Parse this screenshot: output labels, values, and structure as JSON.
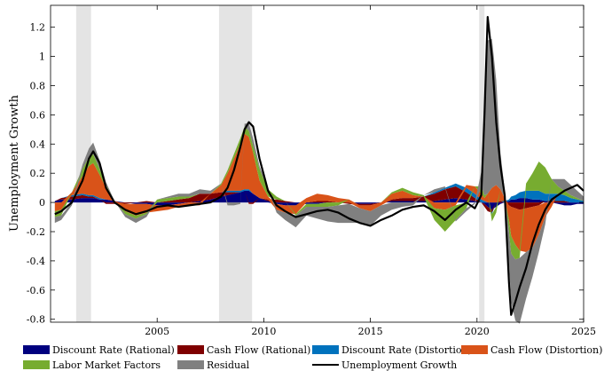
{
  "chart_data": {
    "type": "area",
    "ylabel": "Unemployment Growth",
    "xlabel": "",
    "xlim": [
      2000,
      2025
    ],
    "ylim": [
      -0.82,
      1.35
    ],
    "xticks": [
      2005,
      2010,
      2015,
      2020,
      2025
    ],
    "yticks": [
      -0.8,
      -0.6,
      -0.4,
      -0.2,
      0,
      0.2,
      0.4,
      0.6,
      0.8,
      1,
      1.2
    ],
    "recessions": [
      [
        2001.2,
        2001.9
      ],
      [
        2007.9,
        2009.45
      ],
      [
        2020.1,
        2020.35
      ]
    ],
    "x": [
      2000.2,
      2000.5,
      2001.0,
      2001.5,
      2001.8,
      2002.0,
      2002.3,
      2002.6,
      2003.0,
      2003.5,
      2004.0,
      2004.5,
      2005.0,
      2005.5,
      2006.0,
      2006.5,
      2007.0,
      2007.5,
      2008.0,
      2008.3,
      2008.6,
      2008.9,
      2009.1,
      2009.3,
      2009.5,
      2009.8,
      2010.2,
      2010.6,
      2011.0,
      2011.5,
      2012.0,
      2012.5,
      2013.0,
      2013.5,
      2014.0,
      2014.5,
      2015.0,
      2015.5,
      2016.0,
      2016.5,
      2017.0,
      2017.5,
      2018.0,
      2018.5,
      2019.0,
      2019.5,
      2019.9,
      2020.2,
      2020.35,
      2020.5,
      2020.7,
      2020.9,
      2021.1,
      2021.3,
      2021.5,
      2021.6,
      2021.8,
      2022.0,
      2022.3,
      2022.6,
      2022.9,
      2023.2,
      2023.5,
      2023.8,
      2024.1,
      2024.4,
      2024.7,
      2025.0
    ],
    "series": [
      {
        "name": "Discount Rate (Rational)",
        "color": "#00007f",
        "values": [
          0.01,
          0.02,
          0.02,
          0.03,
          0.03,
          0.03,
          0.02,
          0.02,
          0.01,
          0.0,
          -0.01,
          -0.01,
          -0.02,
          -0.02,
          -0.01,
          0.0,
          0.01,
          0.02,
          0.04,
          0.05,
          0.06,
          0.07,
          0.08,
          0.08,
          0.06,
          0.03,
          0.01,
          -0.01,
          -0.02,
          -0.02,
          -0.01,
          -0.01,
          0.0,
          0.0,
          0.0,
          -0.01,
          -0.01,
          0.0,
          0.01,
          0.01,
          0.01,
          0.01,
          0.01,
          0.02,
          0.03,
          0.02,
          0.01,
          0.0,
          -0.01,
          -0.03,
          -0.05,
          -0.03,
          -0.01,
          0.0,
          0.01,
          0.02,
          0.02,
          0.03,
          0.03,
          0.02,
          0.02,
          0.01,
          0.0,
          -0.01,
          -0.02,
          -0.02,
          -0.01,
          -0.01
        ]
      },
      {
        "name": "Cash Flow (Rational)",
        "color": "#7f0000",
        "values": [
          0.0,
          0.01,
          0.02,
          0.02,
          0.01,
          0.01,
          0.0,
          -0.01,
          -0.01,
          -0.01,
          0.0,
          0.01,
          0.0,
          0.01,
          0.02,
          0.03,
          0.05,
          0.04,
          0.03,
          0.02,
          0.01,
          0.0,
          0.0,
          -0.01,
          -0.01,
          0.0,
          0.01,
          0.02,
          0.01,
          0.0,
          0.0,
          0.01,
          0.01,
          0.0,
          -0.01,
          -0.01,
          -0.01,
          0.0,
          0.01,
          0.02,
          0.02,
          0.03,
          0.05,
          0.07,
          0.08,
          0.05,
          0.02,
          0.0,
          -0.02,
          -0.03,
          -0.02,
          0.0,
          0.01,
          0.0,
          -0.02,
          -0.03,
          -0.04,
          -0.05,
          -0.04,
          -0.03,
          -0.02,
          0.0,
          0.01,
          0.01,
          0.01,
          0.0,
          0.0,
          0.0
        ]
      },
      {
        "name": "Discount Rate (Distortion)",
        "color": "#0072bd",
        "values": [
          0.0,
          0.0,
          0.01,
          0.01,
          0.01,
          0.01,
          0.01,
          0.0,
          0.0,
          0.0,
          0.0,
          0.0,
          0.0,
          0.0,
          0.0,
          0.0,
          0.0,
          0.0,
          0.0,
          0.01,
          0.01,
          0.01,
          0.01,
          0.01,
          0.0,
          0.0,
          0.0,
          0.0,
          0.0,
          0.0,
          0.0,
          0.0,
          0.0,
          0.0,
          0.0,
          0.0,
          0.0,
          0.0,
          0.0,
          0.0,
          0.0,
          0.0,
          0.01,
          0.01,
          0.02,
          0.03,
          0.03,
          0.02,
          0.01,
          0.0,
          -0.01,
          0.0,
          0.0,
          0.01,
          0.01,
          0.02,
          0.03,
          0.04,
          0.05,
          0.06,
          0.06,
          0.05,
          0.05,
          0.05,
          0.04,
          0.03,
          0.02,
          0.01
        ]
      },
      {
        "name": "Cash Flow (Distortion)",
        "color": "#d95319",
        "values": [
          -0.06,
          -0.05,
          0.02,
          0.12,
          0.2,
          0.22,
          0.16,
          0.08,
          0.0,
          -0.05,
          -0.08,
          -0.06,
          -0.04,
          -0.03,
          -0.02,
          -0.02,
          -0.02,
          0.0,
          0.05,
          0.12,
          0.22,
          0.32,
          0.38,
          0.36,
          0.28,
          0.12,
          0.02,
          -0.04,
          -0.05,
          -0.06,
          0.03,
          0.05,
          0.04,
          0.03,
          0.02,
          -0.02,
          -0.04,
          -0.02,
          0.04,
          0.05,
          0.02,
          0.0,
          -0.04,
          -0.05,
          -0.02,
          0.02,
          0.05,
          0.04,
          0.02,
          0.06,
          0.1,
          0.12,
          0.08,
          0.02,
          -0.1,
          -0.2,
          -0.25,
          -0.28,
          -0.3,
          -0.28,
          -0.2,
          -0.1,
          -0.03,
          0.0,
          0.0,
          0.0,
          0.0,
          0.0
        ]
      },
      {
        "name": "Labor Market Factors",
        "color": "#77ac30",
        "values": [
          -0.04,
          -0.04,
          0.0,
          0.05,
          0.06,
          0.06,
          0.04,
          0.02,
          0.0,
          -0.02,
          -0.02,
          -0.01,
          0.02,
          0.02,
          0.02,
          0.01,
          0.0,
          0.0,
          0.01,
          0.02,
          0.03,
          0.04,
          0.05,
          0.04,
          0.05,
          0.08,
          0.05,
          0.02,
          0.0,
          -0.01,
          -0.02,
          -0.02,
          -0.03,
          -0.02,
          0.0,
          0.0,
          0.0,
          0.0,
          0.01,
          0.02,
          0.02,
          0.01,
          -0.08,
          -0.15,
          -0.1,
          -0.04,
          0.0,
          0.05,
          0.02,
          0.0,
          -0.05,
          -0.04,
          0.0,
          0.0,
          -0.08,
          -0.12,
          -0.1,
          -0.05,
          0.05,
          0.12,
          0.2,
          0.18,
          0.1,
          0.05,
          0.03,
          0.02,
          0.01,
          0.0
        ]
      },
      {
        "name": "Residual",
        "color": "#808080",
        "values": [
          -0.04,
          -0.03,
          -0.02,
          0.03,
          0.06,
          0.08,
          0.06,
          0.02,
          0.0,
          -0.02,
          -0.03,
          -0.02,
          0.0,
          0.01,
          0.02,
          0.02,
          0.03,
          0.02,
          0.0,
          -0.02,
          -0.02,
          -0.01,
          0.02,
          0.05,
          0.05,
          0.02,
          0.01,
          -0.02,
          -0.05,
          -0.08,
          -0.06,
          -0.08,
          -0.1,
          -0.12,
          -0.13,
          -0.1,
          -0.1,
          -0.07,
          -0.05,
          -0.03,
          -0.02,
          0.0,
          0.02,
          0.01,
          -0.01,
          -0.02,
          -0.01,
          0.1,
          0.6,
          1.05,
          1.02,
          0.72,
          0.25,
          0.05,
          -0.22,
          -0.33,
          -0.42,
          -0.45,
          -0.32,
          -0.2,
          -0.12,
          -0.05,
          0.0,
          0.05,
          0.08,
          0.07,
          0.05,
          0.03
        ]
      },
      {
        "name": "Unemployment Growth",
        "color": "#000000",
        "kind": "line",
        "values": [
          -0.08,
          -0.06,
          0.0,
          0.15,
          0.3,
          0.35,
          0.27,
          0.1,
          0.0,
          -0.05,
          -0.08,
          -0.06,
          -0.03,
          -0.02,
          -0.03,
          -0.02,
          -0.01,
          0.0,
          0.04,
          0.1,
          0.22,
          0.38,
          0.5,
          0.55,
          0.52,
          0.3,
          0.08,
          -0.02,
          -0.06,
          -0.1,
          -0.08,
          -0.06,
          -0.05,
          -0.07,
          -0.11,
          -0.14,
          -0.16,
          -0.12,
          -0.09,
          -0.05,
          -0.03,
          -0.02,
          -0.06,
          -0.12,
          -0.05,
          0.0,
          -0.04,
          0.05,
          0.6,
          1.27,
          1.0,
          0.55,
          0.25,
          0.05,
          -0.55,
          -0.77,
          -0.68,
          -0.58,
          -0.45,
          -0.28,
          -0.15,
          -0.05,
          0.02,
          0.05,
          0.08,
          0.1,
          0.12,
          0.08
        ]
      }
    ],
    "legend": {
      "placement": "bottom"
    }
  }
}
